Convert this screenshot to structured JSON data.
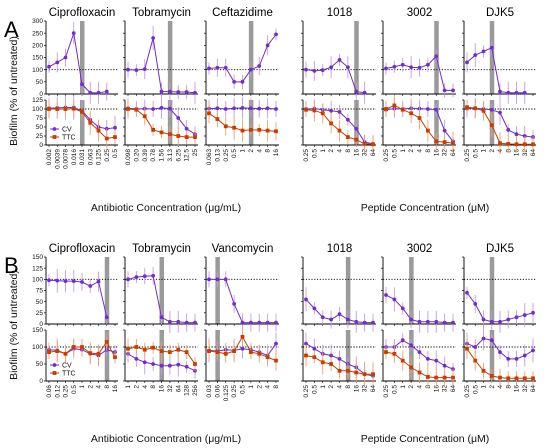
{
  "figure": {
    "panels": [
      {
        "letter": "A",
        "xlabel_left": "Antibiotic Concentration (μg/mL)",
        "xlabel_right": "Peptide Concentration (μM)"
      },
      {
        "letter": "B",
        "xlabel_left": "Antibiotic Concentration (μg/mL)",
        "xlabel_right": "Peptide Concentration (μM)"
      }
    ],
    "ylabel": "Biofilm (% of untreated)",
    "legend": [
      "CV",
      "TTC"
    ],
    "colors": {
      "cv": "#7030c0",
      "ttc": "#c0400a",
      "bar": "#9a9a9a",
      "cv_err": "#c79be0",
      "ttc_err": "#f0a070"
    }
  },
  "chart_data": [
    {
      "panel": "A",
      "title": "Ciprofloxacin",
      "type": "line",
      "ylim_top": [
        0,
        300
      ],
      "ylim_bottom": [
        0,
        125
      ],
      "x": [
        "0.002",
        "0.0039",
        "0.0078",
        "0.016",
        "0.031",
        "0.063",
        "0.125",
        "0.25",
        "0.5"
      ],
      "bar_index": 4,
      "series_top": [
        {
          "name": "CV",
          "values": [
            112,
            130,
            150,
            250,
            40,
            5,
            5,
            10,
            null
          ]
        }
      ],
      "series_bottom": [
        {
          "name": "CV",
          "values": [
            102,
            103,
            104,
            104,
            95,
            70,
            50,
            45,
            48
          ]
        },
        {
          "name": "TTC",
          "values": [
            100,
            100,
            100,
            101,
            92,
            62,
            40,
            18,
            22
          ]
        }
      ]
    },
    {
      "panel": "A",
      "title": "Tobramycin",
      "type": "line",
      "ylim_top": [
        0,
        300
      ],
      "ylim_bottom": [
        0,
        125
      ],
      "x": [
        "0.098",
        "0.20",
        "0.39",
        "0.78",
        "1.56",
        "3.13",
        "6.25",
        "12.5",
        "25"
      ],
      "bar_index": 5,
      "series_top": [
        {
          "name": "CV",
          "values": [
            100,
            98,
            102,
            230,
            10,
            10,
            8,
            8,
            5
          ]
        }
      ],
      "series_bottom": [
        {
          "name": "CV",
          "values": [
            102,
            100,
            101,
            100,
            103,
            101,
            75,
            45,
            30
          ]
        },
        {
          "name": "TTC",
          "values": [
            100,
            98,
            80,
            42,
            35,
            30,
            25,
            22,
            22
          ]
        }
      ]
    },
    {
      "panel": "A",
      "title": "Ceftazidime",
      "type": "line",
      "ylim_top": [
        0,
        300
      ],
      "ylim_bottom": [
        0,
        125
      ],
      "x": [
        "0.063",
        "0.13",
        "0.25",
        "0.5",
        "1",
        "2",
        "4",
        "8",
        "16"
      ],
      "bar_index": 5,
      "series_top": [
        {
          "name": "CV",
          "values": [
            105,
            108,
            108,
            50,
            50,
            100,
            115,
            200,
            245
          ]
        }
      ],
      "series_bottom": [
        {
          "name": "CV",
          "values": [
            101,
            102,
            100,
            102,
            103,
            102,
            101,
            102,
            100
          ]
        },
        {
          "name": "TTC",
          "values": [
            88,
            72,
            52,
            48,
            40,
            42,
            42,
            40,
            38
          ]
        }
      ]
    },
    {
      "panel": "A",
      "title": "1018",
      "type": "line",
      "ylim_top": [
        0,
        300
      ],
      "ylim_bottom": [
        0,
        125
      ],
      "x": [
        "0.25",
        "0.5",
        "1",
        "2",
        "4",
        "8",
        "16",
        "32",
        "64"
      ],
      "bar_index": 6,
      "series_top": [
        {
          "name": "CV",
          "values": [
            100,
            95,
            98,
            110,
            140,
            110,
            10,
            5,
            null
          ]
        }
      ],
      "series_bottom": [
        {
          "name": "CV",
          "values": [
            100,
            101,
            98,
            95,
            92,
            70,
            45,
            8,
            3
          ]
        },
        {
          "name": "TTC",
          "values": [
            98,
            96,
            88,
            60,
            40,
            22,
            15,
            3,
            2
          ]
        }
      ]
    },
    {
      "panel": "A",
      "title": "3002",
      "type": "line",
      "ylim_top": [
        0,
        300
      ],
      "ylim_bottom": [
        0,
        125
      ],
      "x": [
        "0.25",
        "0.5",
        "1",
        "2",
        "4",
        "8",
        "16",
        "32",
        "64"
      ],
      "bar_index": 6,
      "series_top": [
        {
          "name": "CV",
          "values": [
            105,
            112,
            120,
            110,
            108,
            120,
            155,
            15,
            15
          ]
        }
      ],
      "series_bottom": [
        {
          "name": "CV",
          "values": [
            98,
            101,
            100,
            102,
            101,
            100,
            98,
            40,
            10
          ]
        },
        {
          "name": "TTC",
          "values": [
            100,
            110,
            98,
            88,
            75,
            40,
            10,
            8,
            5
          ]
        }
      ]
    },
    {
      "panel": "A",
      "title": "DJK5",
      "type": "line",
      "ylim_top": [
        0,
        300
      ],
      "ylim_bottom": [
        0,
        125
      ],
      "x": [
        "0.25",
        "0.5",
        "1",
        "2",
        "4",
        "8",
        "16",
        "32",
        "64"
      ],
      "bar_index": 3,
      "series_top": [
        {
          "name": "CV",
          "values": [
            130,
            160,
            175,
            190,
            10,
            5,
            5,
            5,
            null
          ]
        }
      ],
      "series_bottom": [
        {
          "name": "CV",
          "values": [
            101,
            102,
            100,
            98,
            90,
            42,
            30,
            25,
            22
          ]
        },
        {
          "name": "TTC",
          "values": [
            105,
            102,
            95,
            55,
            5,
            3,
            2,
            2,
            2
          ]
        }
      ]
    },
    {
      "panel": "B",
      "title": "Ciprofloxacin",
      "type": "line",
      "ylim_top": [
        0,
        150
      ],
      "ylim_bottom": [
        0,
        150
      ],
      "x": [
        "0.06",
        "0.12",
        "0.25",
        "0.5",
        "1",
        "2",
        "4",
        "8",
        "16"
      ],
      "bar_index": 7,
      "series_top": [
        {
          "name": "CV",
          "values": [
            98,
            97,
            96,
            96,
            94,
            85,
            95,
            15,
            null
          ]
        }
      ],
      "series_bottom": [
        {
          "name": "CV",
          "values": [
            92,
            90,
            80,
            95,
            92,
            80,
            75,
            92,
            85
          ]
        },
        {
          "name": "TTC",
          "values": [
            85,
            88,
            80,
            100,
            100,
            82,
            80,
            115,
            70
          ]
        }
      ]
    },
    {
      "panel": "B",
      "title": "Tobramycin",
      "type": "line",
      "ylim_top": [
        0,
        150
      ],
      "ylim_bottom": [
        0,
        150
      ],
      "x": [
        "1",
        "2",
        "4",
        "8",
        "16",
        "32",
        "64",
        "128",
        "256"
      ],
      "bar_index": 4,
      "series_top": [
        {
          "name": "CV",
          "values": [
            100,
            105,
            107,
            108,
            15,
            5,
            5,
            3,
            3
          ]
        }
      ],
      "series_bottom": [
        {
          "name": "CV",
          "values": [
            80,
            65,
            55,
            50,
            45,
            45,
            48,
            42,
            30
          ]
        },
        {
          "name": "TTC",
          "values": [
            95,
            100,
            92,
            98,
            88,
            85,
            92,
            85,
            50
          ]
        }
      ]
    },
    {
      "panel": "B",
      "title": "Vancomycin",
      "type": "line",
      "ylim_top": [
        0,
        150
      ],
      "ylim_bottom": [
        0,
        150
      ],
      "x": [
        "0.03",
        "0.06",
        "0.125",
        "0.25",
        "0.5",
        "1",
        "2",
        "4",
        "8"
      ],
      "bar_index": 1,
      "series_top": [
        {
          "name": "CV",
          "values": [
            100,
            100,
            100,
            45,
            3,
            3,
            3,
            3,
            3
          ]
        }
      ],
      "series_bottom": [
        {
          "name": "CV",
          "values": [
            90,
            88,
            92,
            90,
            95,
            92,
            85,
            75,
            110
          ]
        },
        {
          "name": "TTC",
          "values": [
            88,
            85,
            80,
            88,
            130,
            85,
            80,
            70,
            60
          ]
        }
      ]
    },
    {
      "panel": "B",
      "title": "1018",
      "type": "line",
      "ylim_top": [
        0,
        150
      ],
      "ylim_bottom": [
        0,
        150
      ],
      "x": [
        "0.25",
        "0.5",
        "1",
        "2",
        "4",
        "8",
        "16",
        "32",
        "64"
      ],
      "bar_index": 5,
      "series_top": [
        {
          "name": "CV",
          "values": [
            55,
            35,
            15,
            10,
            22,
            10,
            5,
            3,
            3
          ]
        }
      ],
      "series_bottom": [
        {
          "name": "CV",
          "values": [
            110,
            95,
            80,
            75,
            65,
            50,
            40,
            20,
            15
          ]
        },
        {
          "name": "TTC",
          "values": [
            75,
            70,
            55,
            50,
            30,
            30,
            25,
            20,
            20
          ]
        }
      ]
    },
    {
      "panel": "B",
      "title": "3002",
      "type": "line",
      "ylim_top": [
        0,
        150
      ],
      "ylim_bottom": [
        0,
        150
      ],
      "x": [
        "0.25",
        "0.5",
        "1",
        "2",
        "4",
        "8",
        "16",
        "32",
        "64"
      ],
      "bar_index": 3,
      "series_top": [
        {
          "name": "CV",
          "values": [
            65,
            55,
            35,
            10,
            5,
            5,
            5,
            3,
            3
          ]
        }
      ],
      "series_bottom": [
        {
          "name": "CV",
          "values": [
            100,
            100,
            120,
            105,
            85,
            65,
            60,
            45,
            35
          ]
        },
        {
          "name": "TTC",
          "values": [
            85,
            80,
            60,
            40,
            25,
            12,
            10,
            10,
            10
          ]
        }
      ]
    },
    {
      "panel": "B",
      "title": "DJK5",
      "type": "line",
      "ylim_top": [
        0,
        150
      ],
      "ylim_bottom": [
        0,
        150
      ],
      "x": [
        "0.25",
        "0.5",
        "1",
        "2",
        "4",
        "8",
        "16",
        "32",
        "64"
      ],
      "bar_index": 3,
      "series_top": [
        {
          "name": "CV",
          "values": [
            70,
            45,
            10,
            5,
            5,
            10,
            15,
            20,
            25
          ]
        }
      ],
      "series_bottom": [
        {
          "name": "CV",
          "values": [
            110,
            100,
            125,
            120,
            85,
            65,
            65,
            75,
            90
          ]
        },
        {
          "name": "TTC",
          "values": [
            95,
            60,
            30,
            15,
            10,
            8,
            8,
            8,
            8
          ]
        }
      ]
    }
  ]
}
